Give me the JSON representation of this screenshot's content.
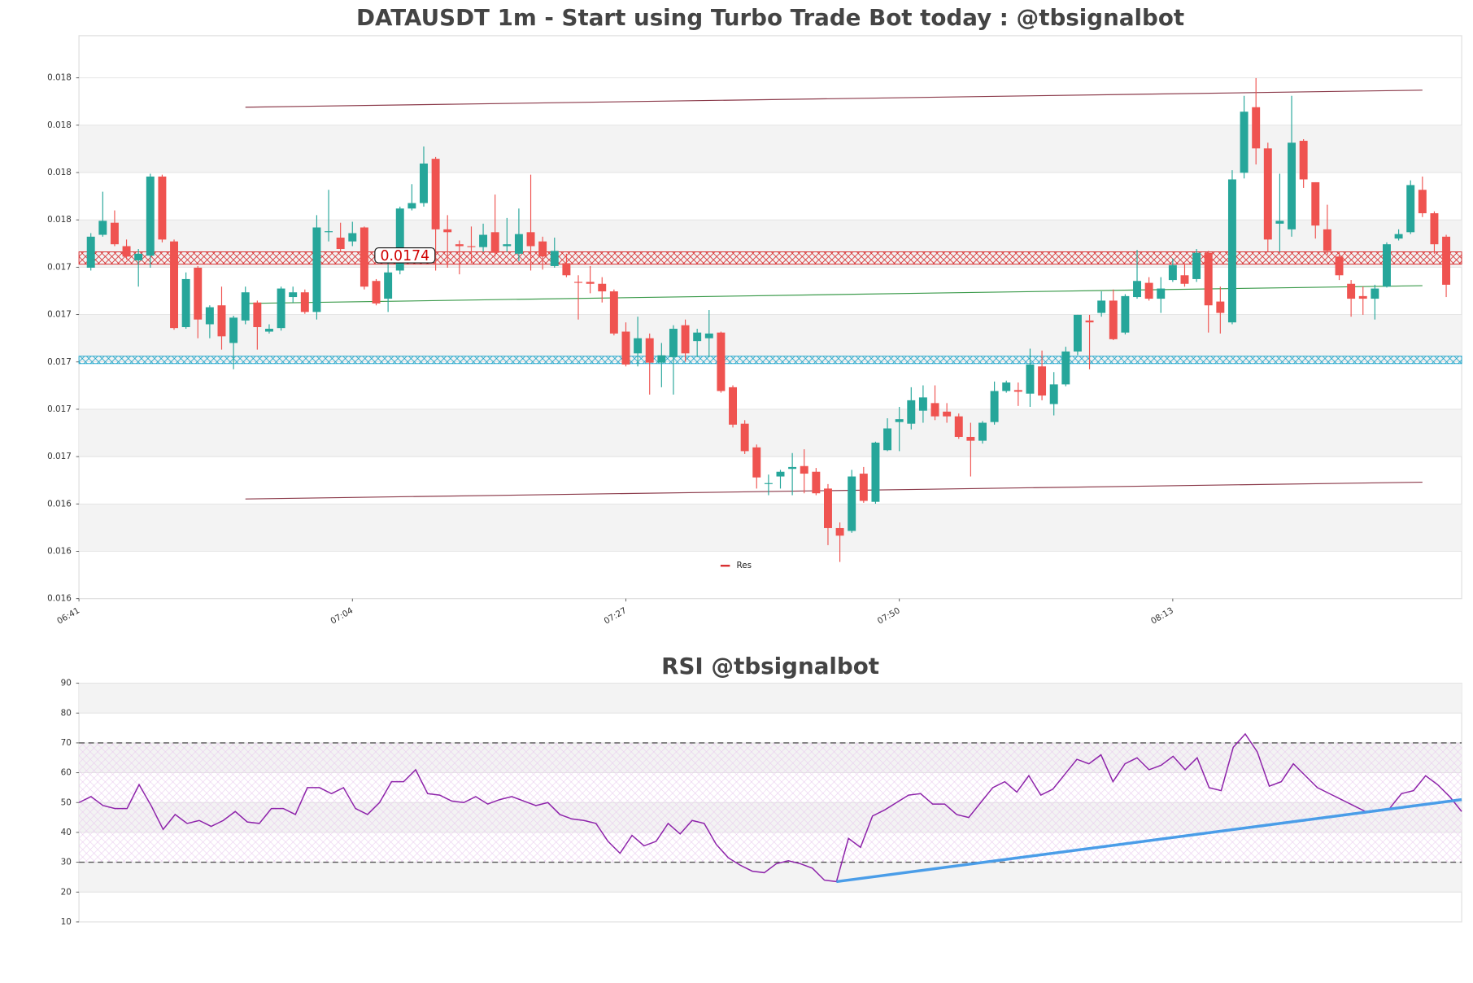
{
  "chart_data": [
    {
      "type": "candlestick",
      "title": "DATAUSDT 1m - Start using Turbo Trade Bot today : @tbsignalbot",
      "up_color": "#26a69a",
      "down_color": "#ef5350",
      "x": [
        0,
        1,
        2,
        3,
        4,
        5,
        6,
        7,
        8,
        9,
        10,
        11,
        12,
        13,
        14,
        15,
        16,
        17,
        18,
        19,
        20,
        21,
        22,
        23,
        24,
        25,
        26,
        27,
        28,
        29,
        30,
        31,
        32,
        33,
        34,
        35,
        36,
        37,
        38,
        39,
        40,
        41,
        42,
        43,
        44,
        45,
        46,
        47,
        48,
        49,
        50,
        51,
        52,
        53,
        54,
        55,
        56,
        57,
        58,
        59,
        60,
        61,
        62,
        63,
        64,
        65,
        66,
        67,
        68,
        69,
        70,
        71,
        72,
        73,
        74,
        75,
        76,
        77,
        78,
        79,
        80,
        81,
        82,
        83,
        84,
        85,
        86,
        87,
        88,
        89,
        90,
        91,
        92,
        93,
        94,
        95,
        96,
        97,
        98,
        99,
        100,
        101,
        102,
        103,
        104,
        105,
        106,
        107,
        108,
        109,
        110,
        111,
        112,
        113,
        114
      ],
      "open": [
        0.017348,
        0.017487,
        0.017538,
        0.017439,
        0.017379,
        0.017399,
        0.017733,
        0.017459,
        0.017097,
        0.017348,
        0.017109,
        0.017189,
        0.01703,
        0.017125,
        0.017201,
        0.017078,
        0.017093,
        0.017224,
        0.017244,
        0.017161,
        0.017498,
        0.017475,
        0.017459,
        0.017518,
        0.017292,
        0.017217,
        0.017336,
        0.017598,
        0.017621,
        0.017808,
        0.01751,
        0.017447,
        0.017439,
        0.017435,
        0.017498,
        0.017439,
        0.017407,
        0.017498,
        0.017459,
        0.017355,
        0.017367,
        0.017288,
        0.017288,
        0.01728,
        0.017248,
        0.017078,
        0.016986,
        0.01705,
        0.016947,
        0.01697,
        0.017105,
        0.017038,
        0.01705,
        0.017074,
        0.016843,
        0.016689,
        0.016589,
        0.016434,
        0.016466,
        0.016498,
        0.01651,
        0.016486,
        0.016415,
        0.016248,
        0.016236,
        0.016478,
        0.016359,
        0.016577,
        0.016696,
        0.016689,
        0.016744,
        0.016776,
        0.01674,
        0.01672,
        0.016633,
        0.016617,
        0.016696,
        0.016827,
        0.016831,
        0.016816,
        0.016931,
        0.016772,
        0.016855,
        0.016994,
        0.017125,
        0.017157,
        0.017209,
        0.017074,
        0.017224,
        0.017284,
        0.017217,
        0.017296,
        0.017316,
        0.0173,
        0.017411,
        0.017205,
        0.017117,
        0.017749,
        0.018026,
        0.017852,
        0.017534,
        0.01751,
        0.017884,
        0.017709,
        0.01751,
        0.017395,
        0.01728,
        0.017228,
        0.017217,
        0.017268,
        0.017471,
        0.017498,
        0.017677,
        0.017578,
        0.017479
      ],
      "high": [
        0.017494,
        0.017669,
        0.01759,
        0.017467,
        0.017427,
        0.017745,
        0.017741,
        0.017467,
        0.017328,
        0.017355,
        0.017189,
        0.017268,
        0.017145,
        0.017268,
        0.017209,
        0.017109,
        0.017268,
        0.017268,
        0.017256,
        0.01757,
        0.017677,
        0.017538,
        0.017542,
        0.017522,
        0.0173,
        0.017387,
        0.017606,
        0.017701,
        0.01786,
        0.017816,
        0.01757,
        0.017463,
        0.017522,
        0.017534,
        0.017657,
        0.017558,
        0.017598,
        0.017741,
        0.017479,
        0.017475,
        0.017407,
        0.017316,
        0.017355,
        0.017308,
        0.017256,
        0.017117,
        0.017141,
        0.01707,
        0.01703,
        0.017105,
        0.017129,
        0.01709,
        0.017169,
        0.017078,
        0.016851,
        0.016704,
        0.016601,
        0.016474,
        0.016494,
        0.016565,
        0.016581,
        0.016502,
        0.016434,
        0.016272,
        0.016494,
        0.016506,
        0.016613,
        0.016712,
        0.01676,
        0.016843,
        0.016851,
        0.016851,
        0.016776,
        0.016732,
        0.016693,
        0.0167,
        0.016867,
        0.016871,
        0.016863,
        0.017006,
        0.016998,
        0.016907,
        0.017014,
        0.017149,
        0.017149,
        0.017248,
        0.017256,
        0.017236,
        0.017423,
        0.017308,
        0.017308,
        0.017387,
        0.017367,
        0.017427,
        0.017419,
        0.017268,
        0.01776,
        0.018074,
        0.018149,
        0.017876,
        0.017745,
        0.018074,
        0.017891,
        0.017709,
        0.017614,
        0.017415,
        0.017296,
        0.017268,
        0.017276,
        0.017455,
        0.01751,
        0.017717,
        0.017733,
        0.017586,
        0.017487
      ],
      "low": [
        0.017336,
        0.017479,
        0.017439,
        0.017383,
        0.017268,
        0.017348,
        0.017455,
        0.017086,
        0.01709,
        0.01705,
        0.01705,
        0.017002,
        0.016919,
        0.017109,
        0.017002,
        0.01707,
        0.017082,
        0.017201,
        0.017153,
        0.017129,
        0.017459,
        0.017415,
        0.017439,
        0.017256,
        0.017189,
        0.017161,
        0.01732,
        0.01759,
        0.017606,
        0.017336,
        0.017348,
        0.01732,
        0.017367,
        0.017415,
        0.017395,
        0.017415,
        0.017375,
        0.017336,
        0.01734,
        0.017348,
        0.017308,
        0.017129,
        0.01724,
        0.017201,
        0.017062,
        0.016931,
        0.016931,
        0.016812,
        0.016843,
        0.016812,
        0.016951,
        0.01697,
        0.01697,
        0.01682,
        0.016673,
        0.016561,
        0.016415,
        0.016387,
        0.016415,
        0.016387,
        0.016395,
        0.016387,
        0.016176,
        0.016105,
        0.016228,
        0.016355,
        0.016351,
        0.016573,
        0.016573,
        0.016665,
        0.016693,
        0.016704,
        0.016693,
        0.016625,
        0.016466,
        0.016605,
        0.016685,
        0.01682,
        0.016764,
        0.01676,
        0.016788,
        0.016724,
        0.016847,
        0.016978,
        0.016919,
        0.017141,
        0.017042,
        0.017066,
        0.017217,
        0.017209,
        0.017157,
        0.017288,
        0.017268,
        0.017288,
        0.017074,
        0.01707,
        0.017109,
        0.017725,
        0.017784,
        0.017415,
        0.017415,
        0.017479,
        0.017685,
        0.017471,
        0.017403,
        0.017296,
        0.017141,
        0.017149,
        0.017129,
        0.017264,
        0.017463,
        0.01749,
        0.017562,
        0.017407,
        0.017224
      ],
      "close": [
        0.017479,
        0.017546,
        0.017447,
        0.017395,
        0.017407,
        0.017733,
        0.017467,
        0.017093,
        0.0173,
        0.017129,
        0.017181,
        0.017058,
        0.017137,
        0.017244,
        0.017097,
        0.01709,
        0.01726,
        0.017244,
        0.017161,
        0.017518,
        0.017502,
        0.017427,
        0.017494,
        0.017268,
        0.017197,
        0.017328,
        0.017598,
        0.017621,
        0.017788,
        0.01751,
        0.017498,
        0.017439,
        0.017435,
        0.017487,
        0.017411,
        0.017447,
        0.01749,
        0.017439,
        0.017395,
        0.017419,
        0.017316,
        0.017284,
        0.01728,
        0.017248,
        0.01707,
        0.016939,
        0.01705,
        0.016947,
        0.016978,
        0.01709,
        0.016986,
        0.017074,
        0.01707,
        0.016827,
        0.016685,
        0.016573,
        0.016462,
        0.016438,
        0.016486,
        0.016506,
        0.016478,
        0.016395,
        0.016248,
        0.016216,
        0.016466,
        0.016363,
        0.016609,
        0.016669,
        0.016708,
        0.016788,
        0.0168,
        0.01672,
        0.01672,
        0.016633,
        0.016617,
        0.016693,
        0.016827,
        0.016863,
        0.016824,
        0.016939,
        0.016808,
        0.016855,
        0.016994,
        0.017149,
        0.017117,
        0.017209,
        0.017046,
        0.017228,
        0.017292,
        0.017217,
        0.01726,
        0.017359,
        0.01728,
        0.017411,
        0.017189,
        0.017157,
        0.017721,
        0.018007,
        0.017852,
        0.017467,
        0.017546,
        0.017876,
        0.017721,
        0.017526,
        0.017419,
        0.017316,
        0.017217,
        0.017217,
        0.01726,
        0.017447,
        0.01749,
        0.017697,
        0.017578,
        0.017447,
        0.017276
      ],
      "xlim": [
        -1,
        115.3
      ],
      "xticks": [
        {
          "value": -1,
          "label": "06:41"
        },
        {
          "value": 22,
          "label": "07:04"
        },
        {
          "value": 45,
          "label": "07:27"
        },
        {
          "value": 68,
          "label": "07:50"
        },
        {
          "value": 91,
          "label": "08:13"
        }
      ],
      "ylim": [
        0.01595,
        0.018328
      ],
      "yticks": [
        {
          "value": 0.01595,
          "label": "0.016"
        },
        {
          "value": 0.01615,
          "label": "0.016"
        },
        {
          "value": 0.01635,
          "label": "0.016"
        },
        {
          "value": 0.01655,
          "label": "0.017"
        },
        {
          "value": 0.01675,
          "label": "0.017"
        },
        {
          "value": 0.01695,
          "label": "0.017"
        },
        {
          "value": 0.01715,
          "label": "0.017"
        },
        {
          "value": 0.01735,
          "label": "0.017"
        },
        {
          "value": 0.01755,
          "label": "0.018"
        },
        {
          "value": 0.01775,
          "label": "0.018"
        },
        {
          "value": 0.01795,
          "label": "0.018"
        },
        {
          "value": 0.01815,
          "label": "0.018"
        }
      ],
      "grid": true,
      "resistance": {
        "name": "Res",
        "color": "#d62728",
        "band": [
          0.017363,
          0.017415
        ]
      },
      "support": {
        "color": "#17a2c8",
        "band": [
          0.016943,
          0.016974
        ]
      },
      "price_label": 0.0174,
      "trendlines": [
        {
          "color": "#8b3a4a",
          "x": [
            13,
            112
          ],
          "values": [
            0.018026,
            0.018098
          ]
        },
        {
          "color": "#8b3a4a",
          "x": [
            13,
            112
          ],
          "values": [
            0.016371,
            0.016442
          ]
        },
        {
          "color": "#3a9a4a",
          "x": [
            13,
            112
          ],
          "values": [
            0.017197,
            0.017272
          ]
        }
      ]
    },
    {
      "type": "line",
      "title": "RSI @tbsignalbot",
      "color": "#8e24aa",
      "x": [
        0,
        1,
        2,
        3,
        4,
        5,
        6,
        7,
        8,
        9,
        10,
        11,
        12,
        13,
        14,
        15,
        16,
        17,
        18,
        19,
        20,
        21,
        22,
        23,
        24,
        25,
        26,
        27,
        28,
        29,
        30,
        31,
        32,
        33,
        34,
        35,
        36,
        37,
        38,
        39,
        40,
        41,
        42,
        43,
        44,
        45,
        46,
        47,
        48,
        49,
        50,
        51,
        52,
        53,
        54,
        55,
        56,
        57,
        58,
        59,
        60,
        61,
        62,
        63,
        64,
        65,
        66,
        67,
        68,
        69,
        70,
        71,
        72,
        73,
        74,
        75,
        76,
        77,
        78,
        79,
        80,
        81,
        82,
        83,
        84,
        85,
        86,
        87,
        88,
        89,
        90,
        91,
        92,
        93,
        94,
        95,
        96,
        97,
        98,
        99,
        100,
        101,
        102,
        103,
        104,
        105,
        106,
        107,
        108,
        109,
        110,
        111,
        112,
        113,
        114,
        115
      ],
      "values": [
        50,
        52,
        49,
        48,
        48,
        56,
        49,
        41,
        46,
        43,
        44,
        42,
        44,
        47,
        43.5,
        43,
        48,
        48,
        46,
        55,
        55,
        53,
        55,
        48,
        46,
        50,
        57,
        57,
        61,
        53,
        52.5,
        50.5,
        50,
        52,
        49.5,
        51,
        52,
        50.5,
        49,
        50,
        46,
        44.5,
        44,
        43,
        37,
        33,
        39,
        35.5,
        37,
        43,
        39.5,
        44,
        43,
        36,
        31.5,
        29,
        27,
        26.5,
        29.5,
        30.5,
        29.5,
        28,
        24,
        23.5,
        38,
        35,
        45.5,
        47.5,
        50,
        52.5,
        53,
        49.5,
        49.5,
        46,
        45,
        50,
        55,
        57,
        53.5,
        59,
        52.5,
        54.5,
        59.5,
        64.5,
        63,
        66,
        57,
        63,
        65,
        61,
        62.5,
        65.5,
        61,
        65,
        55,
        54,
        68.5,
        73,
        67,
        55.5,
        57,
        63,
        59,
        55,
        53,
        51,
        49,
        47,
        47.5,
        48,
        53,
        54,
        59,
        56,
        52,
        47
      ],
      "xlim": [
        0,
        115
      ],
      "ylim": [
        10,
        90
      ],
      "yticks": [
        10,
        20,
        30,
        40,
        50,
        60,
        70,
        80,
        90
      ],
      "levels": [
        30,
        70
      ],
      "trendline": {
        "color": "#4a9de8",
        "x": [
          63,
          115
        ],
        "values": [
          23.5,
          51
        ]
      }
    }
  ]
}
